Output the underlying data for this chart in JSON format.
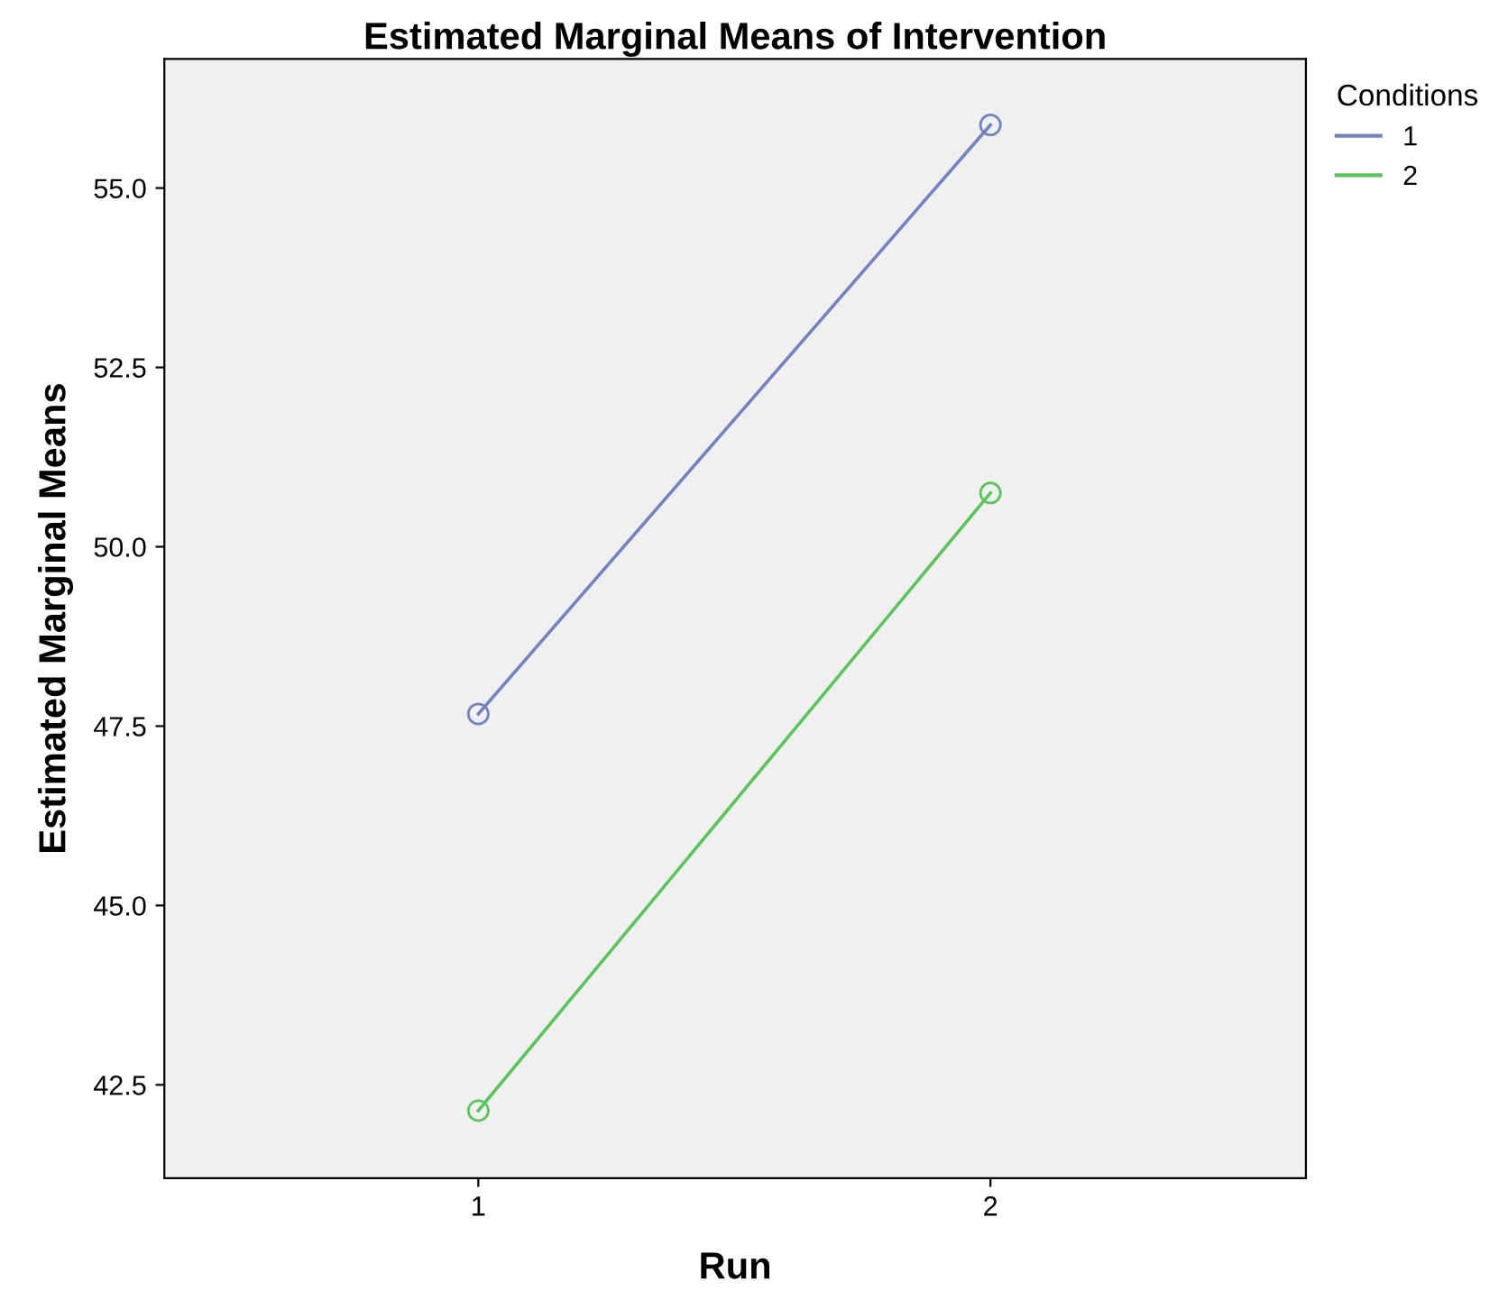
{
  "chart_data": {
    "type": "line",
    "title": "Estimated Marginal Means of Intervention",
    "xlabel": "Run",
    "ylabel": "Estimated Marginal Means",
    "legend_title": "Conditions",
    "categories": [
      "1",
      "2"
    ],
    "series": [
      {
        "name": "1",
        "color": "#7482c2",
        "values": [
          47.67,
          55.88
        ]
      },
      {
        "name": "2",
        "color": "#5cc45c",
        "values": [
          42.14,
          50.75
        ]
      }
    ],
    "ylim": [
      41.2,
      56.8
    ],
    "yticks": [
      {
        "value": 42.5,
        "label": "42.5"
      },
      {
        "value": 45.0,
        "label": "45.0"
      },
      {
        "value": 47.5,
        "label": "47.5"
      },
      {
        "value": 50.0,
        "label": "50.0"
      },
      {
        "value": 52.5,
        "label": "52.5"
      },
      {
        "value": 55.0,
        "label": "55.0"
      }
    ],
    "grid": false,
    "legend": "top right",
    "marker": "circle",
    "line_style": "solid"
  }
}
